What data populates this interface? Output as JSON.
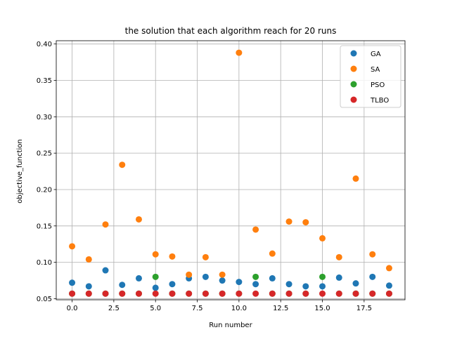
{
  "chart_data": {
    "type": "scatter",
    "title": "the solution that each algorithm reach for 20 runs",
    "xlabel": "Run number",
    "ylabel": "objective_function",
    "xlim": [
      -0.95,
      19.95
    ],
    "ylim": [
      0.0485,
      0.4045
    ],
    "xticks": [
      0.0,
      2.5,
      5.0,
      7.5,
      10.0,
      12.5,
      15.0,
      17.5
    ],
    "xtick_labels": [
      "0.0",
      "2.5",
      "5.0",
      "7.5",
      "10.0",
      "12.5",
      "15.0",
      "17.5"
    ],
    "yticks": [
      0.05,
      0.1,
      0.15,
      0.2,
      0.25,
      0.3,
      0.35,
      0.4
    ],
    "ytick_labels": [
      "0.05",
      "0.10",
      "0.15",
      "0.20",
      "0.25",
      "0.30",
      "0.35",
      "0.40"
    ],
    "grid": true,
    "legend_position": "top-right",
    "x": [
      0,
      1,
      2,
      3,
      4,
      5,
      6,
      7,
      8,
      9,
      10,
      11,
      12,
      13,
      14,
      15,
      16,
      17,
      18,
      19
    ],
    "series": [
      {
        "name": "GA",
        "color": "#1f77b4",
        "values": [
          0.072,
          0.067,
          0.089,
          0.069,
          0.078,
          0.065,
          0.07,
          0.078,
          0.08,
          0.075,
          0.073,
          0.07,
          0.078,
          0.07,
          0.067,
          0.067,
          0.079,
          0.071,
          0.08,
          0.068
        ]
      },
      {
        "name": "SA",
        "color": "#ff7f0e",
        "values": [
          0.122,
          0.104,
          0.152,
          0.234,
          0.159,
          0.111,
          0.108,
          0.083,
          0.107,
          0.083,
          0.388,
          0.145,
          0.112,
          0.156,
          0.155,
          0.133,
          0.107,
          0.215,
          0.111,
          0.092
        ]
      },
      {
        "name": "PSO",
        "color": "#2ca02c",
        "values": [
          0.057,
          0.057,
          0.057,
          0.057,
          0.057,
          0.08,
          0.057,
          0.057,
          0.057,
          0.057,
          0.057,
          0.08,
          0.057,
          0.057,
          0.057,
          0.08,
          0.057,
          0.057,
          0.057,
          0.057
        ]
      },
      {
        "name": "TLBO",
        "color": "#d62728",
        "values": [
          0.057,
          0.057,
          0.057,
          0.057,
          0.057,
          0.057,
          0.057,
          0.057,
          0.057,
          0.057,
          0.057,
          0.057,
          0.057,
          0.057,
          0.057,
          0.057,
          0.057,
          0.057,
          0.057,
          0.057
        ]
      }
    ]
  }
}
